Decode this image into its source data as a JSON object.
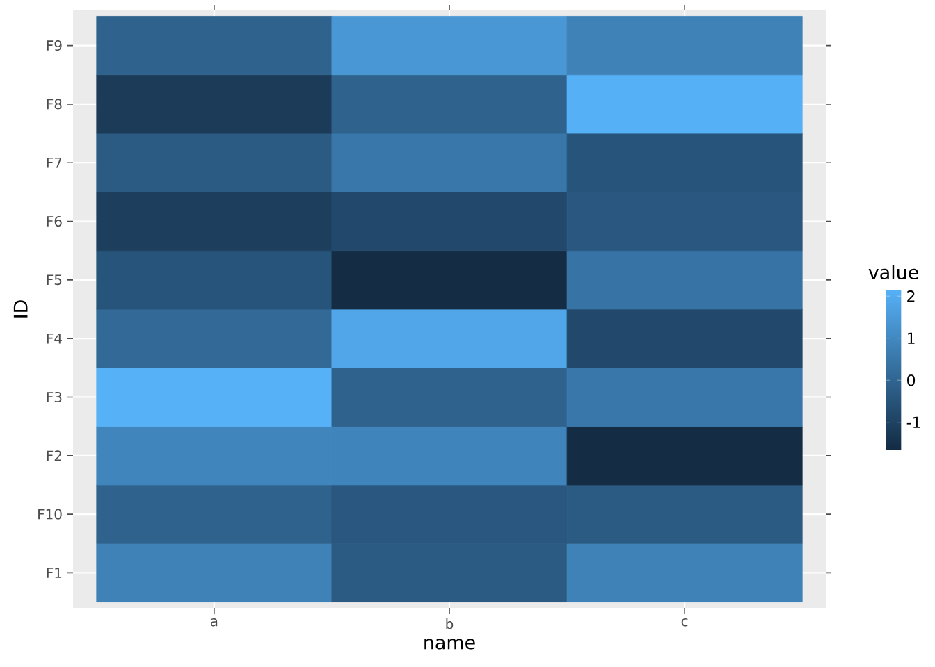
{
  "chart_data": {
    "type": "heatmap",
    "xlabel": "name",
    "ylabel": "ID",
    "clabel": "value",
    "categories": [
      "a",
      "b",
      "c"
    ],
    "y_categories": [
      "F9",
      "F8",
      "F7",
      "F6",
      "F5",
      "F4",
      "F3",
      "F2",
      "F10",
      "F1"
    ],
    "cells": [
      [
        -0.1,
        1.4,
        0.8
      ],
      [
        -1.2,
        -0.1,
        2.1
      ],
      [
        -0.3,
        0.5,
        -0.5
      ],
      [
        -1.1,
        -0.8,
        -0.4
      ],
      [
        -0.5,
        -1.6,
        0.4
      ],
      [
        0.1,
        1.8,
        -0.8
      ],
      [
        2.15,
        -0.1,
        0.5
      ],
      [
        0.9,
        0.85,
        -1.6
      ],
      [
        -0.1,
        -0.4,
        -0.3
      ],
      [
        0.8,
        -0.3,
        0.8
      ]
    ],
    "clim": [
      -1.65,
      2.15
    ],
    "cticks": [
      -1,
      0,
      1,
      2
    ],
    "grid": true
  }
}
